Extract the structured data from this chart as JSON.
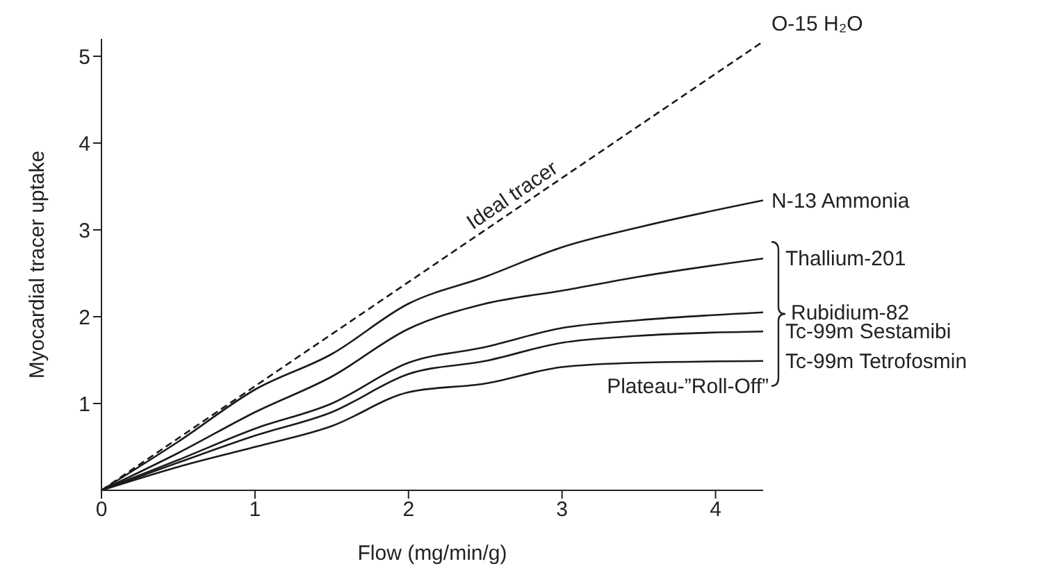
{
  "chart_data": {
    "type": "line",
    "xlabel": "Flow (mg/min/g)",
    "ylabel": "Myocardial tracer uptake",
    "x": [
      0,
      0.5,
      1,
      1.5,
      2,
      2.5,
      3,
      3.5,
      4.31
    ],
    "xlim": [
      0,
      4.31
    ],
    "ylim": [
      0,
      5.2
    ],
    "xticks": [
      0,
      1,
      2,
      3,
      4
    ],
    "yticks": [
      1,
      2,
      3,
      4,
      5
    ],
    "marker": "none",
    "series": [
      {
        "name": "O-15 H₂O",
        "color": "#1a1a1a",
        "line_style": "dashed",
        "x": [
          0,
          4.31
        ],
        "values": [
          0,
          5.17
        ]
      },
      {
        "name": "N-13 Ammonia",
        "color": "#1a1a1a",
        "line_style": "solid",
        "values": [
          0,
          0.56,
          1.16,
          1.57,
          2.15,
          2.46,
          2.8,
          3.03,
          3.34
        ]
      },
      {
        "name": "Thallium-201",
        "color": "#1a1a1a",
        "line_style": "solid",
        "values": [
          0,
          0.43,
          0.9,
          1.31,
          1.86,
          2.15,
          2.3,
          2.46,
          2.67
        ]
      },
      {
        "name": "Rubidium-82",
        "color": "#1a1a1a",
        "line_style": "solid",
        "values": [
          0,
          0.35,
          0.71,
          1.0,
          1.47,
          1.65,
          1.87,
          1.96,
          2.05
        ]
      },
      {
        "name": "Tc-99m Sestamibi",
        "color": "#1a1a1a",
        "line_style": "solid",
        "values": [
          0,
          0.32,
          0.63,
          0.9,
          1.34,
          1.49,
          1.7,
          1.78,
          1.83
        ]
      },
      {
        "name": "Tc-99m Tetrofosmin",
        "color": "#1a1a1a",
        "line_style": "solid",
        "values": [
          0,
          0.27,
          0.5,
          0.74,
          1.13,
          1.23,
          1.42,
          1.47,
          1.49
        ]
      }
    ],
    "annotations": [
      {
        "text": "Ideal tracer",
        "x": 2.7,
        "y": 3.24
      },
      "Plateau-”Roll-Off”"
    ]
  }
}
